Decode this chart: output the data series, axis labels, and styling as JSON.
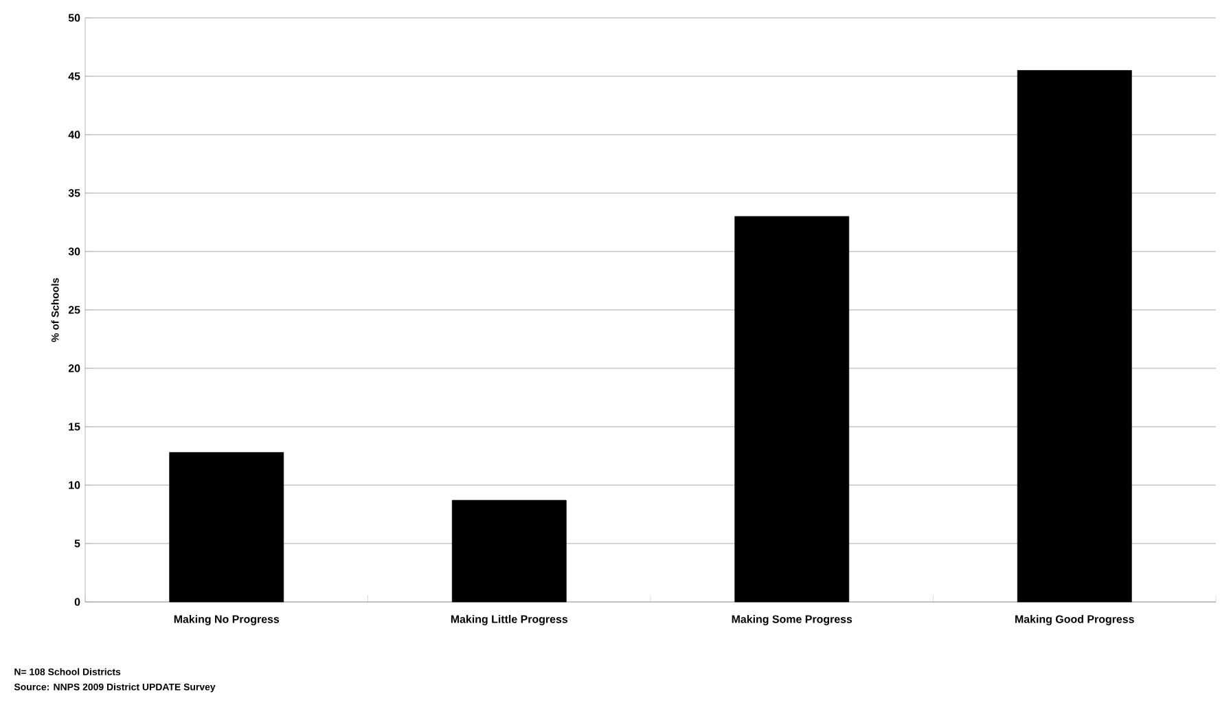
{
  "chart_data": {
    "type": "bar",
    "ylabel": "% of Schools",
    "categories": [
      "Making No Progress",
      "Making Little Progress",
      "Making Some Progress",
      "Making Good Progress"
    ],
    "values": [
      12.8,
      8.7,
      33,
      45.5
    ],
    "color": "#000000",
    "ylim": [
      0,
      50
    ],
    "yticks": [
      0,
      5,
      10,
      15,
      20,
      25,
      30,
      35,
      40,
      45,
      50
    ],
    "grid": "y",
    "annotations": [
      "N= 108 School Districts",
      "Source: NNPS 2009 District UPDATE Survey"
    ]
  }
}
